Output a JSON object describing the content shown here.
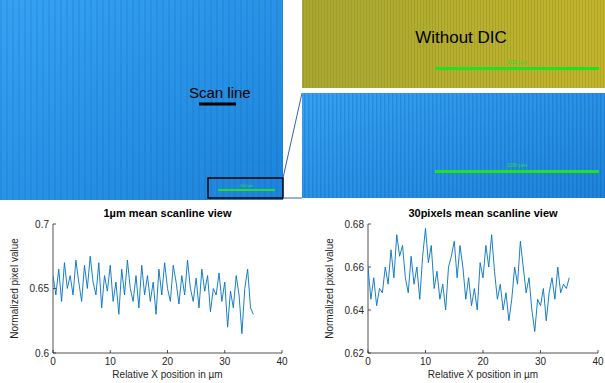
{
  "images": {
    "main": {
      "label": "Scan line",
      "scale_bar": "100 µm"
    },
    "zoom_no_dic": {
      "label": "Without DIC",
      "scale_bar": "100 µm"
    },
    "zoom_dic": {
      "scale_bar": "100 µm"
    }
  },
  "chart_data": [
    {
      "type": "line",
      "title": "1µm mean scanline view",
      "x_label": "Relative X position in µm",
      "y_label": "Normalized pixel value",
      "color": "#0072bd",
      "xlim": [
        0,
        40
      ],
      "xticks": [
        0,
        10,
        20,
        30,
        40
      ],
      "ylim": [
        0.6,
        0.7
      ],
      "yticks": [
        0.6,
        0.65,
        0.7
      ],
      "x": [
        0,
        0.5,
        1,
        1.5,
        2,
        2.5,
        3,
        3.5,
        4,
        4.5,
        5,
        5.5,
        6,
        6.5,
        7,
        7.5,
        8,
        8.5,
        9,
        9.5,
        10,
        10.5,
        11,
        11.5,
        12,
        12.5,
        13,
        13.5,
        14,
        14.5,
        15,
        15.5,
        16,
        16.5,
        17,
        17.5,
        18,
        18.5,
        19,
        19.5,
        20,
        20.5,
        21,
        21.5,
        22,
        22.5,
        23,
        23.5,
        24,
        24.5,
        25,
        25.5,
        26,
        26.5,
        27,
        27.5,
        28,
        28.5,
        29,
        29.5,
        30,
        30.5,
        31,
        31.5,
        32,
        32.5,
        33,
        33.5,
        34,
        34.5,
        35
      ],
      "values": [
        0.66,
        0.645,
        0.665,
        0.64,
        0.67,
        0.65,
        0.66,
        0.645,
        0.672,
        0.655,
        0.64,
        0.668,
        0.65,
        0.675,
        0.655,
        0.645,
        0.67,
        0.635,
        0.66,
        0.648,
        0.668,
        0.64,
        0.655,
        0.63,
        0.665,
        0.645,
        0.672,
        0.65,
        0.64,
        0.66,
        0.635,
        0.668,
        0.645,
        0.66,
        0.64,
        0.655,
        0.63,
        0.665,
        0.645,
        0.67,
        0.65,
        0.64,
        0.668,
        0.655,
        0.638,
        0.66,
        0.645,
        0.672,
        0.65,
        0.64,
        0.658,
        0.635,
        0.665,
        0.648,
        0.66,
        0.632,
        0.65,
        0.645,
        0.662,
        0.64,
        0.655,
        0.62,
        0.648,
        0.635,
        0.66,
        0.645,
        0.615,
        0.65,
        0.665,
        0.635,
        0.63
      ]
    },
    {
      "type": "line",
      "title": "30pixels mean scanline view",
      "x_label": "Relative X position in µm",
      "y_label": "Normalized pixel value",
      "color": "#0072bd",
      "xlim": [
        0,
        40
      ],
      "xticks": [
        0,
        10,
        20,
        30,
        40
      ],
      "ylim": [
        0.62,
        0.68
      ],
      "yticks": [
        0.62,
        0.64,
        0.66,
        0.68
      ],
      "x": [
        0,
        0.5,
        1,
        1.5,
        2,
        2.5,
        3,
        3.5,
        4,
        4.5,
        5,
        5.5,
        6,
        6.5,
        7,
        7.5,
        8,
        8.5,
        9,
        9.5,
        10,
        10.5,
        11,
        11.5,
        12,
        12.5,
        13,
        13.5,
        14,
        14.5,
        15,
        15.5,
        16,
        16.5,
        17,
        17.5,
        18,
        18.5,
        19,
        19.5,
        20,
        20.5,
        21,
        21.5,
        22,
        22.5,
        23,
        23.5,
        24,
        24.5,
        25,
        25.5,
        26,
        26.5,
        27,
        27.5,
        28,
        28.5,
        29,
        29.5,
        30,
        30.5,
        31,
        31.5,
        32,
        32.5,
        33,
        33.5,
        34,
        34.5,
        35
      ],
      "values": [
        0.66,
        0.645,
        0.655,
        0.642,
        0.65,
        0.648,
        0.66,
        0.652,
        0.668,
        0.655,
        0.675,
        0.665,
        0.67,
        0.655,
        0.648,
        0.665,
        0.652,
        0.66,
        0.645,
        0.665,
        0.678,
        0.662,
        0.67,
        0.65,
        0.658,
        0.645,
        0.652,
        0.64,
        0.66,
        0.665,
        0.672,
        0.655,
        0.67,
        0.66,
        0.645,
        0.655,
        0.642,
        0.65,
        0.64,
        0.662,
        0.655,
        0.67,
        0.66,
        0.675,
        0.658,
        0.645,
        0.652,
        0.64,
        0.648,
        0.635,
        0.645,
        0.66,
        0.652,
        0.672,
        0.66,
        0.648,
        0.655,
        0.64,
        0.63,
        0.645,
        0.642,
        0.65,
        0.635,
        0.648,
        0.655,
        0.645,
        0.66,
        0.648,
        0.652,
        0.65,
        0.655
      ]
    }
  ]
}
